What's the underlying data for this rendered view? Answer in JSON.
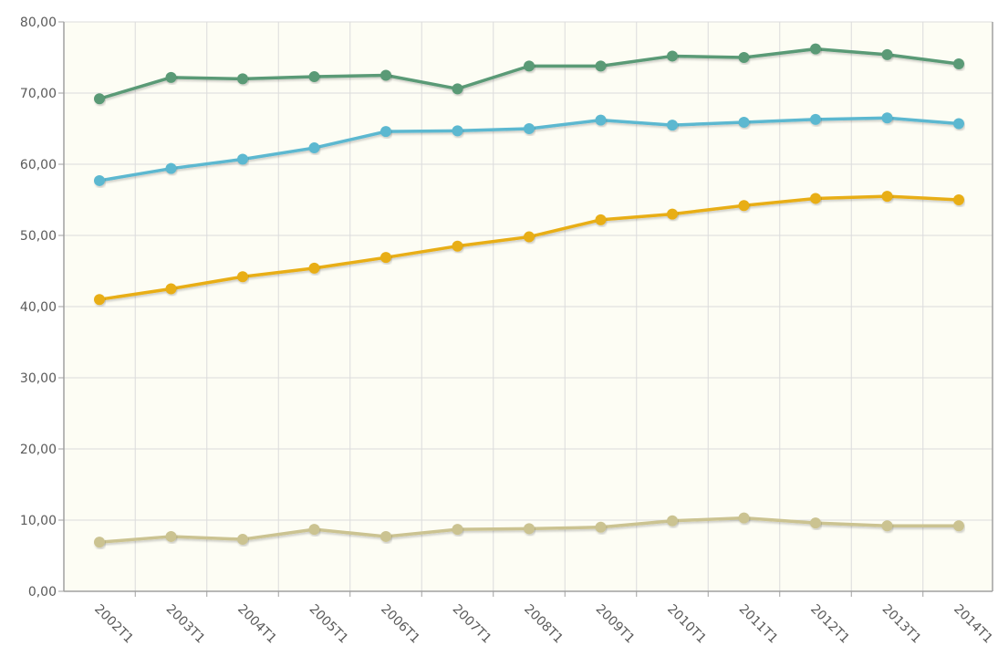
{
  "chart_data": {
    "type": "line",
    "title": "",
    "xlabel": "",
    "ylabel": "",
    "categories": [
      "2002T1",
      "2003T1",
      "2004T1",
      "2005T1",
      "2006T1",
      "2007T1",
      "2008T1",
      "2009T1",
      "2010T1",
      "2011T1",
      "2012T1",
      "2013T1",
      "2014T1"
    ],
    "y_ticks": [
      "0,00",
      "10,00",
      "20,00",
      "30,00",
      "40,00",
      "50,00",
      "60,00",
      "70,00",
      "80,00"
    ],
    "ylim": [
      0,
      80
    ],
    "grid": true,
    "series": [
      {
        "color": "#5a9a76",
        "values": [
          69.2,
          72.2,
          72.0,
          72.3,
          72.5,
          70.6,
          73.8,
          73.8,
          75.2,
          75.0,
          76.2,
          75.4,
          74.1
        ]
      },
      {
        "color": "#5cb8d0",
        "values": [
          57.7,
          59.4,
          60.7,
          62.3,
          64.6,
          64.7,
          65.0,
          66.2,
          65.5,
          65.9,
          66.3,
          66.5,
          65.7
        ]
      },
      {
        "color": "#e8ae16",
        "values": [
          41.0,
          42.5,
          44.2,
          45.4,
          46.9,
          48.5,
          49.8,
          52.2,
          53.0,
          54.2,
          55.2,
          55.5,
          55.0
        ]
      },
      {
        "color": "#cbc391",
        "values": [
          6.9,
          7.7,
          7.3,
          8.7,
          7.7,
          8.7,
          8.8,
          9.0,
          9.9,
          10.3,
          9.6,
          9.2,
          9.2
        ]
      }
    ],
    "colors": {
      "plot_background": "#fdfdf4",
      "grid": "#dcdcdc",
      "axis": "#a0a0a0"
    }
  }
}
